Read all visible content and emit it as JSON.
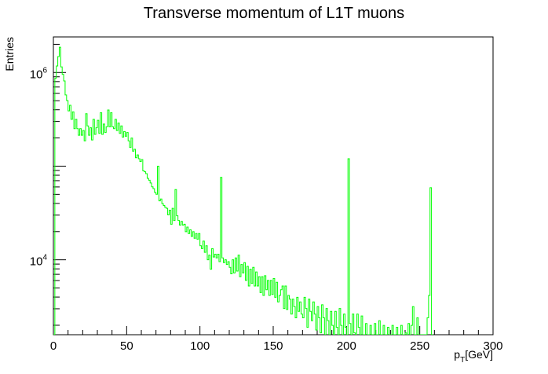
{
  "chart_data": {
    "type": "histogram",
    "title": "Transverse momentum of L1T muons",
    "xlabel": {
      "main": "p",
      "sub": "T",
      "rest": "[GeV]"
    },
    "ylabel": "Entries",
    "xlim": [
      0,
      300
    ],
    "ylim_log10": [
      3.2,
      6.38
    ],
    "yscale": "log",
    "line_color": "#00ff00",
    "x_ticks": [
      0,
      50,
      100,
      150,
      200,
      250,
      300
    ],
    "y_ticks": [
      {
        "base": "10",
        "exp": "4",
        "value": 10000
      },
      {
        "base": "10",
        "exp": "6",
        "value": 1000000
      }
    ],
    "bin_width": 1,
    "bin_start": 0,
    "bin_log10_values": [
      3.15,
      5.94,
      6.07,
      6.17,
      6.27,
      6.06,
      5.98,
      5.91,
      5.76,
      5.7,
      5.59,
      5.65,
      5.5,
      5.58,
      5.4,
      5.5,
      5.4,
      5.33,
      5.4,
      5.33,
      5.38,
      5.27,
      5.56,
      5.43,
      5.33,
      5.41,
      5.28,
      5.5,
      5.34,
      5.41,
      5.49,
      5.35,
      5.57,
      5.34,
      5.45,
      5.36,
      5.42,
      5.6,
      5.42,
      5.57,
      5.42,
      5.4,
      5.5,
      5.38,
      5.46,
      5.35,
      5.43,
      5.31,
      5.37,
      5.32,
      5.36,
      5.27,
      5.2,
      5.3,
      5.16,
      5.18,
      5.09,
      5.12,
      5.08,
      5.05,
      5.07,
      4.95,
      4.94,
      4.92,
      4.87,
      4.85,
      4.82,
      4.78,
      4.76,
      4.72,
      4.7,
      5.0,
      4.63,
      4.65,
      4.6,
      4.58,
      4.56,
      4.55,
      4.48,
      4.53,
      4.38,
      4.55,
      4.42,
      4.75,
      4.47,
      4.42,
      4.37,
      4.41,
      4.37,
      4.38,
      4.3,
      4.35,
      4.28,
      4.32,
      4.25,
      4.3,
      4.23,
      4.28,
      4.22,
      4.28,
      4.15,
      4.12,
      4.2,
      4.08,
      4.15,
      4.0,
      4.05,
      3.9,
      4.12,
      4.03,
      4.06,
      4.02,
      4.06,
      3.98,
      4.88,
      4.02,
      3.97,
      4.0,
      3.95,
      3.98,
      3.92,
      3.85,
      4.0,
      3.86,
      4.02,
      3.88,
      4.05,
      3.82,
      3.95,
      3.86,
      3.97,
      3.78,
      3.93,
      3.72,
      3.9,
      3.75,
      3.92,
      3.72,
      3.87,
      3.72,
      3.82,
      3.65,
      3.82,
      3.62,
      3.83,
      3.68,
      3.78,
      3.62,
      3.78,
      3.63,
      3.8,
      3.6,
      3.76,
      3.55,
      3.62,
      3.68,
      3.72,
      3.48,
      3.72,
      3.47,
      3.62,
      3.58,
      3.42,
      3.58,
      3.5,
      3.38,
      3.6,
      3.45,
      3.55,
      3.42,
      3.38,
      3.6,
      3.48,
      3.28,
      3.58,
      3.45,
      3.35,
      3.55,
      3.42,
      3.25,
      3.5,
      3.38,
      3.22,
      3.52,
      3.38,
      3.18,
      3.48,
      3.35,
      3.15,
      3.45,
      3.3,
      3.12,
      3.45,
      3.28,
      3.1,
      3.48,
      3.3,
      3.1,
      3.42,
      3.28,
      3.05,
      5.08,
      3.32,
      3.05,
      3.42,
      3.22,
      3.02,
      3.42,
      3.28,
      3.05,
      3.4,
      3.2,
      3.0,
      3.32,
      3.18,
      2.95,
      3.3,
      3.15,
      3.0,
      3.32,
      3.12,
      2.95,
      3.35,
      3.12,
      2.92,
      3.3,
      3.1,
      2.9,
      3.28,
      3.12,
      2.9,
      3.3,
      3.15,
      2.88,
      3.28,
      3.12,
      2.88,
      3.3,
      3.15,
      2.88,
      3.22,
      3.1,
      3.32,
      2.92,
      3.3,
      3.5,
      3.05,
      2.92,
      3.38,
      3.12,
      2.95,
      3.05,
      3.0,
      3.2,
      2.95,
      3.38,
      3.62,
      4.77,
      2.0
    ]
  }
}
